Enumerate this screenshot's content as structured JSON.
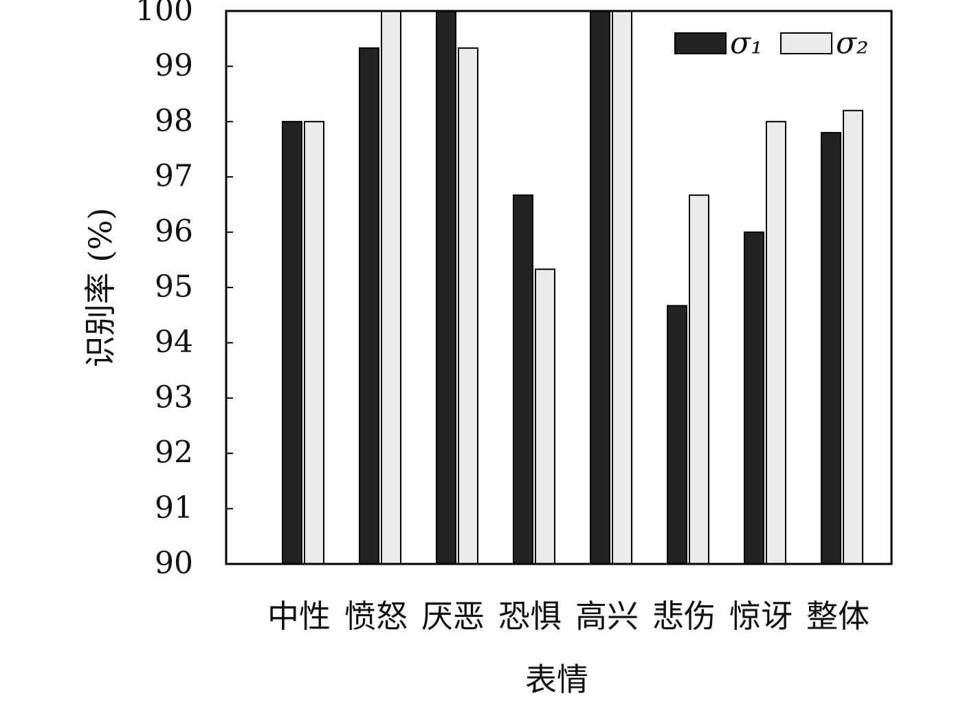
{
  "chart_data": {
    "type": "bar",
    "x_label": "表情",
    "y_label": "识别率 (%)",
    "categories": [
      "中性",
      "愤怒",
      "厌恶",
      "恐惧",
      "高兴",
      "悲伤",
      "惊讶",
      "整体"
    ],
    "series": [
      {
        "name": "σ₁",
        "color": "#222222",
        "values": [
          98,
          99.33,
          100,
          96.67,
          100,
          94.67,
          96,
          97.8
        ]
      },
      {
        "name": "σ₂",
        "color": "#ebebeb",
        "values": [
          98,
          100,
          99.33,
          95.33,
          100,
          96.67,
          98,
          98.2
        ]
      }
    ],
    "ylim": [
      90,
      100
    ],
    "yticks": [
      90,
      91,
      92,
      93,
      94,
      95,
      96,
      97,
      98,
      99,
      100
    ],
    "legend": "upper right"
  }
}
